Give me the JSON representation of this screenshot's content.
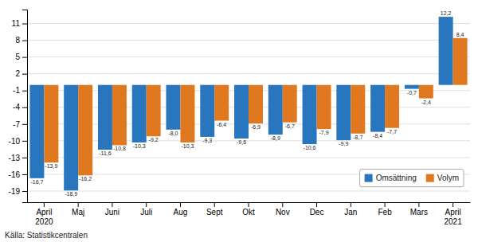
{
  "chart_data": {
    "type": "bar",
    "categories": [
      "April\n2020",
      "Maj",
      "Juni",
      "Juli",
      "Aug",
      "Sept",
      "Okt",
      "Nov",
      "Dec",
      "Jan",
      "Feb",
      "Mars",
      "April\n2021"
    ],
    "series": [
      {
        "name": "Omsättning",
        "color": "#2876be",
        "values": [
          -16.7,
          -18.9,
          -11.6,
          -10.3,
          -8.0,
          -9.3,
          -9.6,
          -8.9,
          -10.6,
          -9.9,
          -8.4,
          -0.7,
          12.2
        ],
        "value_labels": [
          "-16,7",
          "-18,9",
          "-11,6",
          "-10,3",
          "-8,0",
          "-9,3",
          "-9,6",
          "-8,9",
          "-10,6",
          "-9,9",
          "-8,4",
          "-0,7",
          "12,2"
        ]
      },
      {
        "name": "Volym",
        "color": "#e07820",
        "values": [
          -13.9,
          -16.2,
          -10.8,
          -9.2,
          -10.3,
          -6.4,
          -6.9,
          -6.7,
          -7.9,
          -8.7,
          -7.7,
          -2.4,
          8.4
        ],
        "value_labels": [
          "-13,9",
          "-16,2",
          "-10,8",
          "-9,2",
          "-10,3",
          "-6,4",
          "-6,9",
          "-6,7",
          "-7,9",
          "-8,7",
          "-7,7",
          "-2,4",
          "8,4"
        ]
      }
    ],
    "ylim": [
      -21,
      13.5
    ],
    "yticks": [
      -19,
      -16,
      -13,
      -10,
      -7,
      -4,
      -1,
      2,
      5,
      8,
      11
    ],
    "grid": true,
    "legend": "lower right",
    "data_labels": true,
    "annotations": [
      "Källa: Statistikcentralen"
    ]
  }
}
